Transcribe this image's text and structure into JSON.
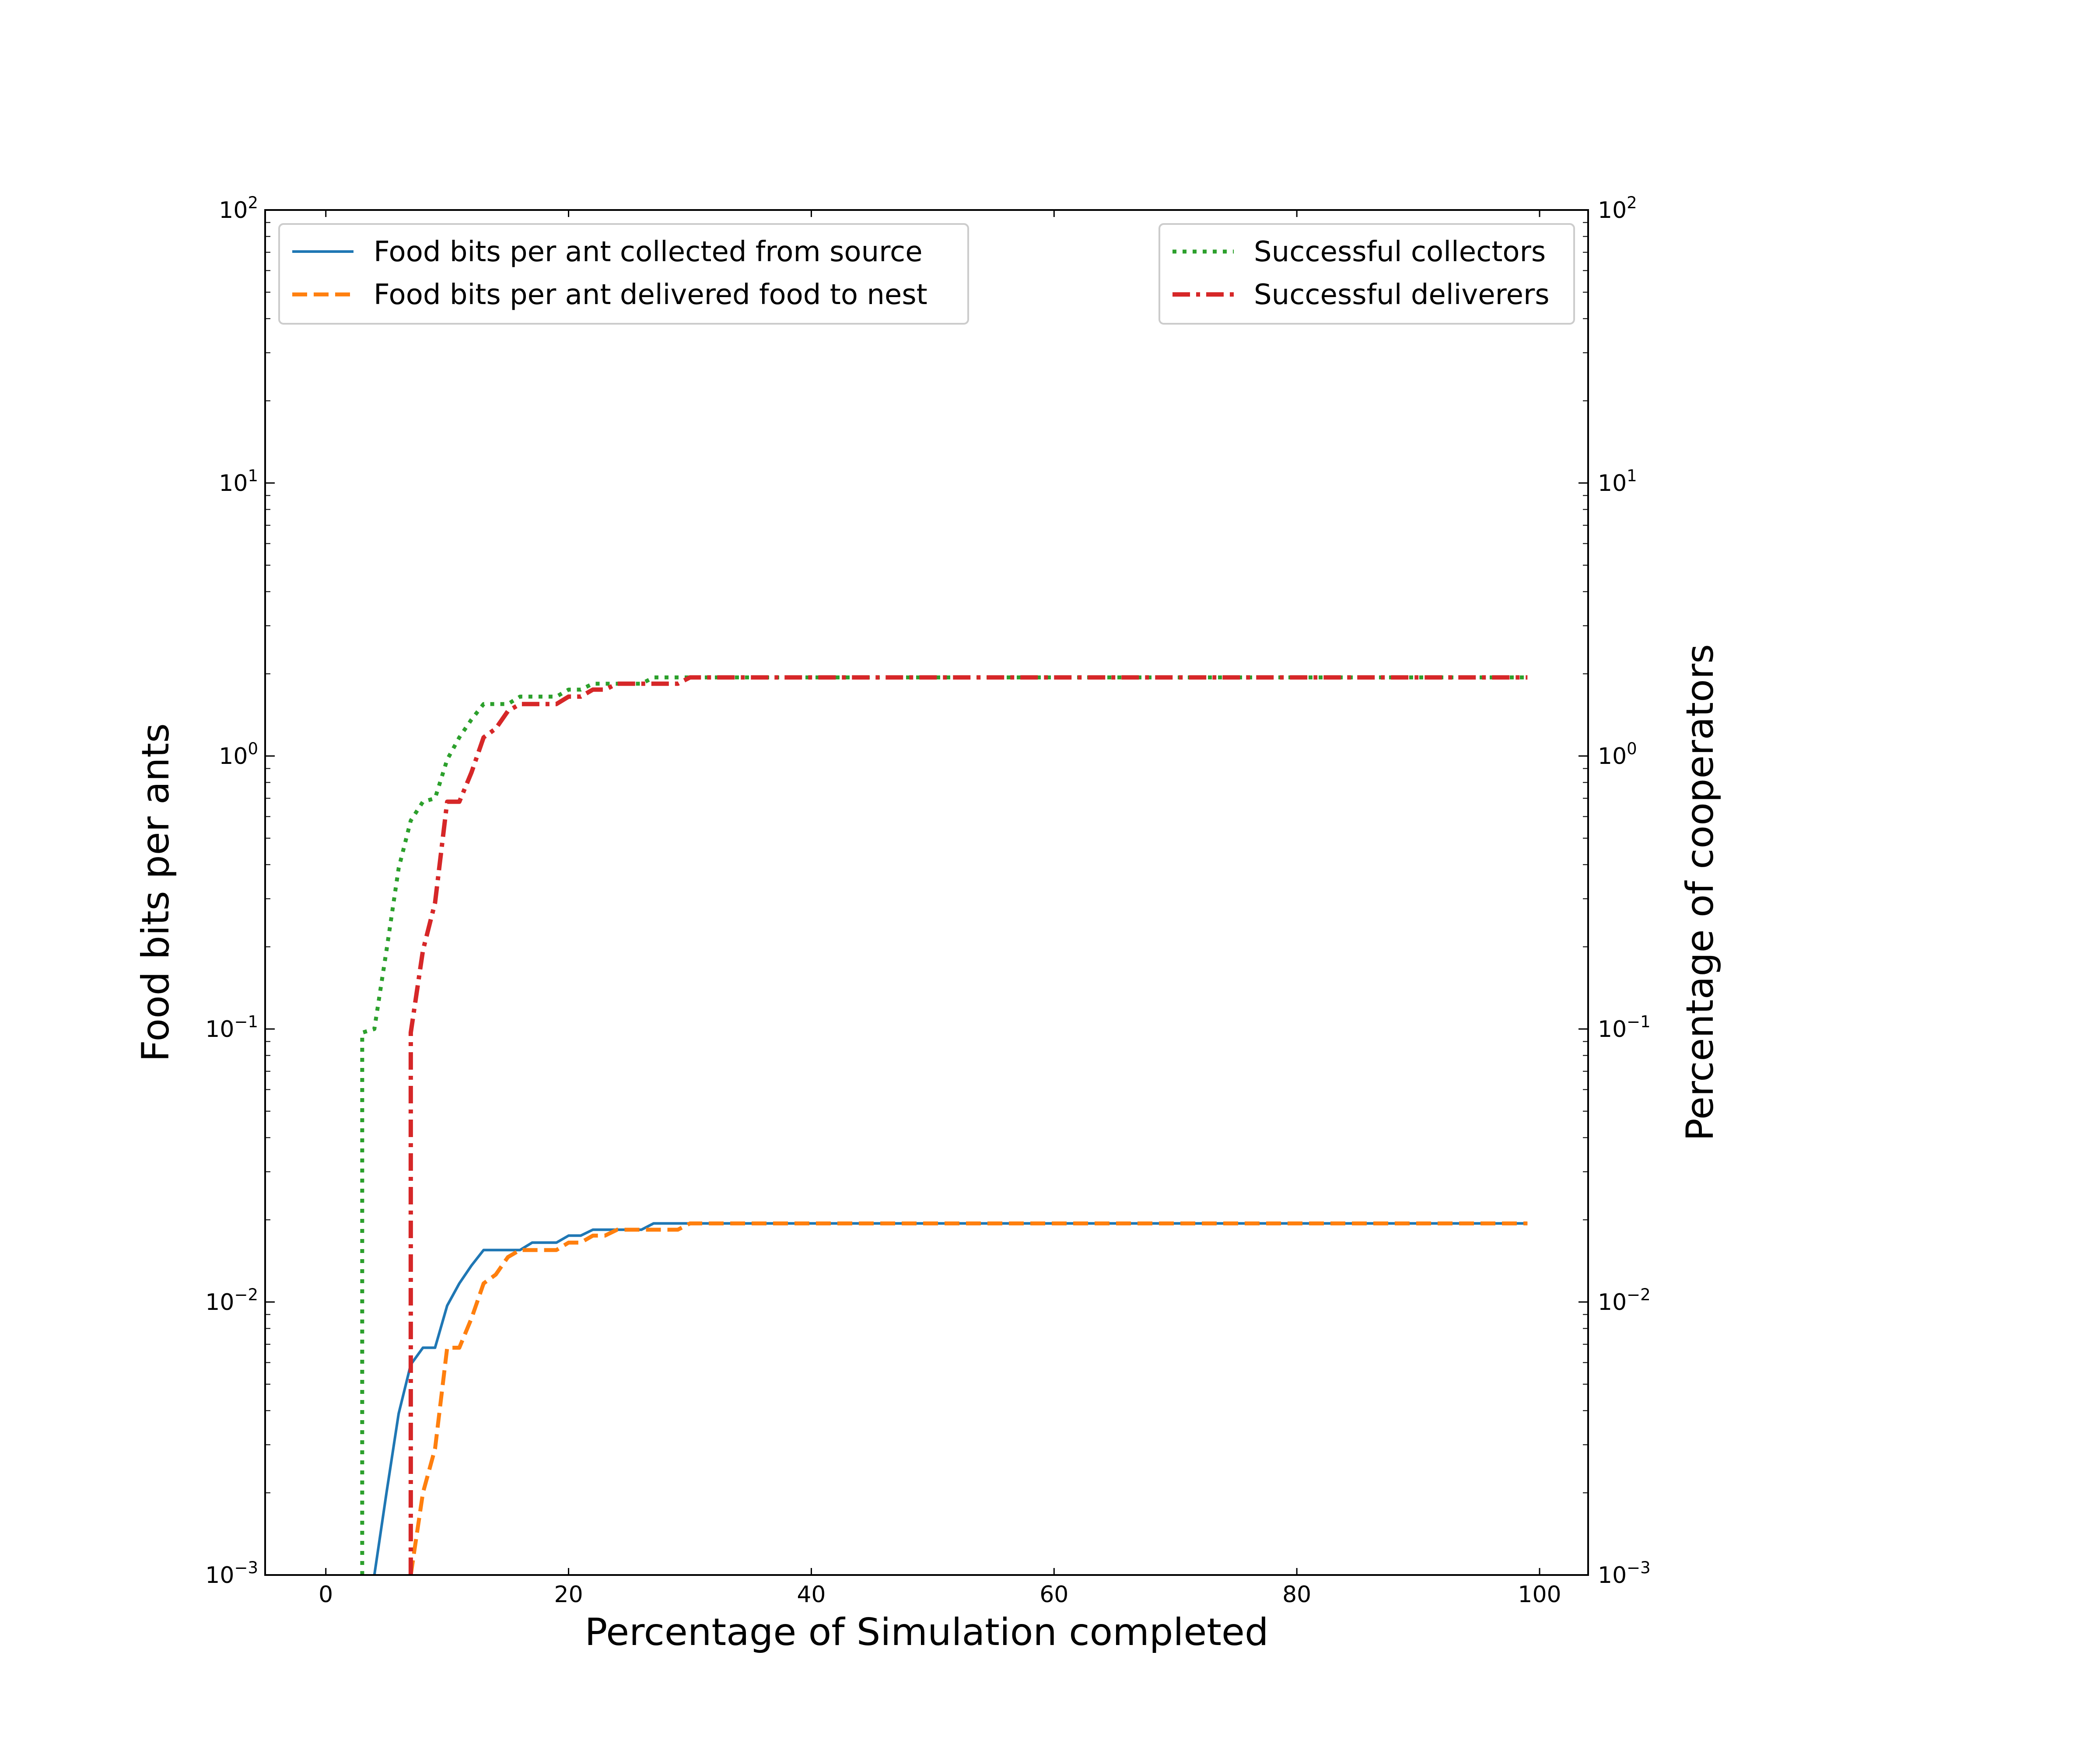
{
  "chart_data": {
    "type": "line",
    "xlabel": "Percentage of Simulation completed",
    "ylabel": "Food bits per ants",
    "ylabel_right": "Percentage of cooperators",
    "xlim": [
      -5,
      104
    ],
    "xticks": [
      "0",
      "20",
      "40",
      "60",
      "80",
      "100"
    ],
    "xtick_values": [
      0,
      20,
      40,
      60,
      80,
      100
    ],
    "yscale": "log",
    "ylim": [
      0.001,
      100
    ],
    "yticks": [
      {
        "value": 0.001,
        "base": "10",
        "exp": "−3"
      },
      {
        "value": 0.01,
        "base": "10",
        "exp": "−2"
      },
      {
        "value": 0.1,
        "base": "10",
        "exp": "−1"
      },
      {
        "value": 1,
        "base": "10",
        "exp": "0"
      },
      {
        "value": 10,
        "base": "10",
        "exp": "1"
      },
      {
        "value": 100,
        "base": "10",
        "exp": "2"
      }
    ],
    "ylim_right": [
      0.001,
      100
    ],
    "grid": false,
    "legends": [
      {
        "placement": "upper-left",
        "entries": [
          "Food bits per ant collected from source",
          "Food bits per ant delivered food to nest"
        ]
      },
      {
        "placement": "upper-right",
        "entries": [
          "Successful collectors",
          "Successful deliverers"
        ]
      }
    ],
    "series": [
      {
        "name": "Food bits per ant collected from source",
        "axis": "left",
        "color": "#1f77b4",
        "style": "solid",
        "x": [
          4,
          5,
          6,
          7,
          8,
          9,
          10,
          11,
          12,
          13,
          14,
          15,
          16,
          17,
          18,
          19,
          20,
          21,
          22,
          23,
          24,
          25,
          26,
          27,
          28,
          29,
          30,
          40,
          50,
          60,
          70,
          80,
          90,
          99
        ],
        "y": [
          0.001,
          0.002,
          0.0039,
          0.0059,
          0.0068,
          0.0068,
          0.0097,
          0.0117,
          0.0136,
          0.0155,
          0.0155,
          0.0155,
          0.0155,
          0.0165,
          0.0165,
          0.0165,
          0.0175,
          0.0175,
          0.0184,
          0.0184,
          0.0184,
          0.0184,
          0.0184,
          0.0194,
          0.0194,
          0.0194,
          0.0194,
          0.0194,
          0.0194,
          0.0194,
          0.0194,
          0.0194,
          0.0194,
          0.0194
        ]
      },
      {
        "name": "Food bits per ant delivered food to nest",
        "axis": "left",
        "color": "#ff7f0e",
        "style": "dashed",
        "x": [
          7,
          8,
          9,
          10,
          11,
          12,
          13,
          14,
          15,
          16,
          17,
          18,
          19,
          20,
          21,
          22,
          23,
          24,
          25,
          26,
          27,
          28,
          29,
          30,
          40,
          50,
          60,
          70,
          80,
          90,
          99
        ],
        "y": [
          0.001,
          0.002,
          0.0029,
          0.0068,
          0.0068,
          0.0087,
          0.0117,
          0.0126,
          0.0146,
          0.0155,
          0.0155,
          0.0155,
          0.0155,
          0.0165,
          0.0165,
          0.0175,
          0.0175,
          0.0184,
          0.0184,
          0.0184,
          0.0184,
          0.0184,
          0.0184,
          0.0194,
          0.0194,
          0.0194,
          0.0194,
          0.0194,
          0.0194,
          0.0194,
          0.0194
        ]
      },
      {
        "name": "Successful collectors",
        "axis": "right",
        "color": "#2ca02c",
        "style": "dotted",
        "x": [
          3,
          3,
          4,
          5,
          6,
          7,
          8,
          9,
          10,
          11,
          12,
          13,
          14,
          15,
          16,
          17,
          18,
          19,
          20,
          21,
          22,
          23,
          24,
          25,
          26,
          27,
          28,
          29,
          30,
          40,
          50,
          60,
          70,
          80,
          90,
          99
        ],
        "y": [
          0.001,
          0.097,
          0.1,
          0.194,
          0.388,
          0.58,
          0.68,
          0.7,
          0.97,
          1.17,
          1.36,
          1.55,
          1.55,
          1.55,
          1.65,
          1.65,
          1.65,
          1.65,
          1.75,
          1.75,
          1.84,
          1.84,
          1.84,
          1.84,
          1.84,
          1.94,
          1.94,
          1.94,
          1.94,
          1.94,
          1.94,
          1.94,
          1.94,
          1.94,
          1.94,
          1.94
        ]
      },
      {
        "name": "Successful deliverers",
        "axis": "right",
        "color": "#d62728",
        "style": "dashdot",
        "x": [
          7,
          7,
          8,
          9,
          10,
          11,
          12,
          13,
          14,
          15,
          16,
          17,
          18,
          19,
          20,
          21,
          22,
          23,
          24,
          25,
          26,
          27,
          28,
          29,
          30,
          40,
          50,
          60,
          70,
          80,
          90,
          99
        ],
        "y": [
          0.001,
          0.097,
          0.194,
          0.29,
          0.68,
          0.68,
          0.87,
          1.17,
          1.26,
          1.46,
          1.55,
          1.55,
          1.55,
          1.55,
          1.65,
          1.65,
          1.75,
          1.75,
          1.84,
          1.84,
          1.84,
          1.84,
          1.84,
          1.84,
          1.94,
          1.94,
          1.94,
          1.94,
          1.94,
          1.94,
          1.94,
          1.94
        ]
      }
    ]
  }
}
